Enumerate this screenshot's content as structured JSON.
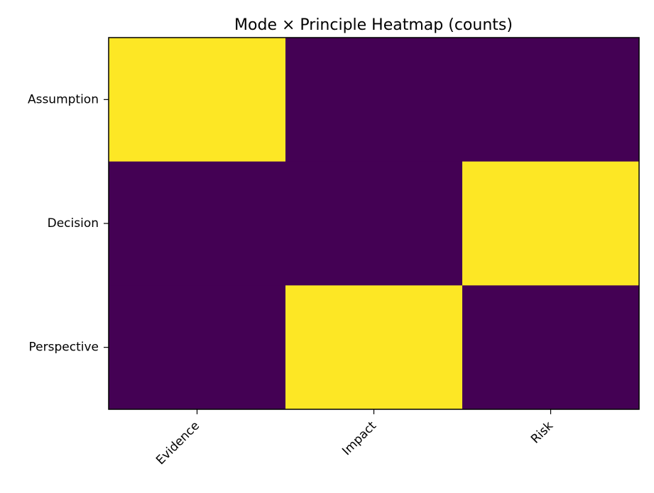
{
  "chart_data": {
    "type": "heatmap",
    "title": "Mode × Principle Heatmap (counts)",
    "xlabel": "",
    "ylabel": "",
    "x_categories": [
      "Evidence",
      "Impact",
      "Risk"
    ],
    "y_categories": [
      "Assumption",
      "Decision",
      "Perspective"
    ],
    "values": [
      [
        1,
        0,
        0
      ],
      [
        0,
        0,
        1
      ],
      [
        0,
        1,
        0
      ]
    ],
    "value_range": [
      0,
      1
    ],
    "colormap": "viridis",
    "colors": {
      "low": "#440154",
      "high": "#fde725"
    },
    "colorbar": false,
    "grid": false,
    "x_tick_rotation_deg": 45
  }
}
